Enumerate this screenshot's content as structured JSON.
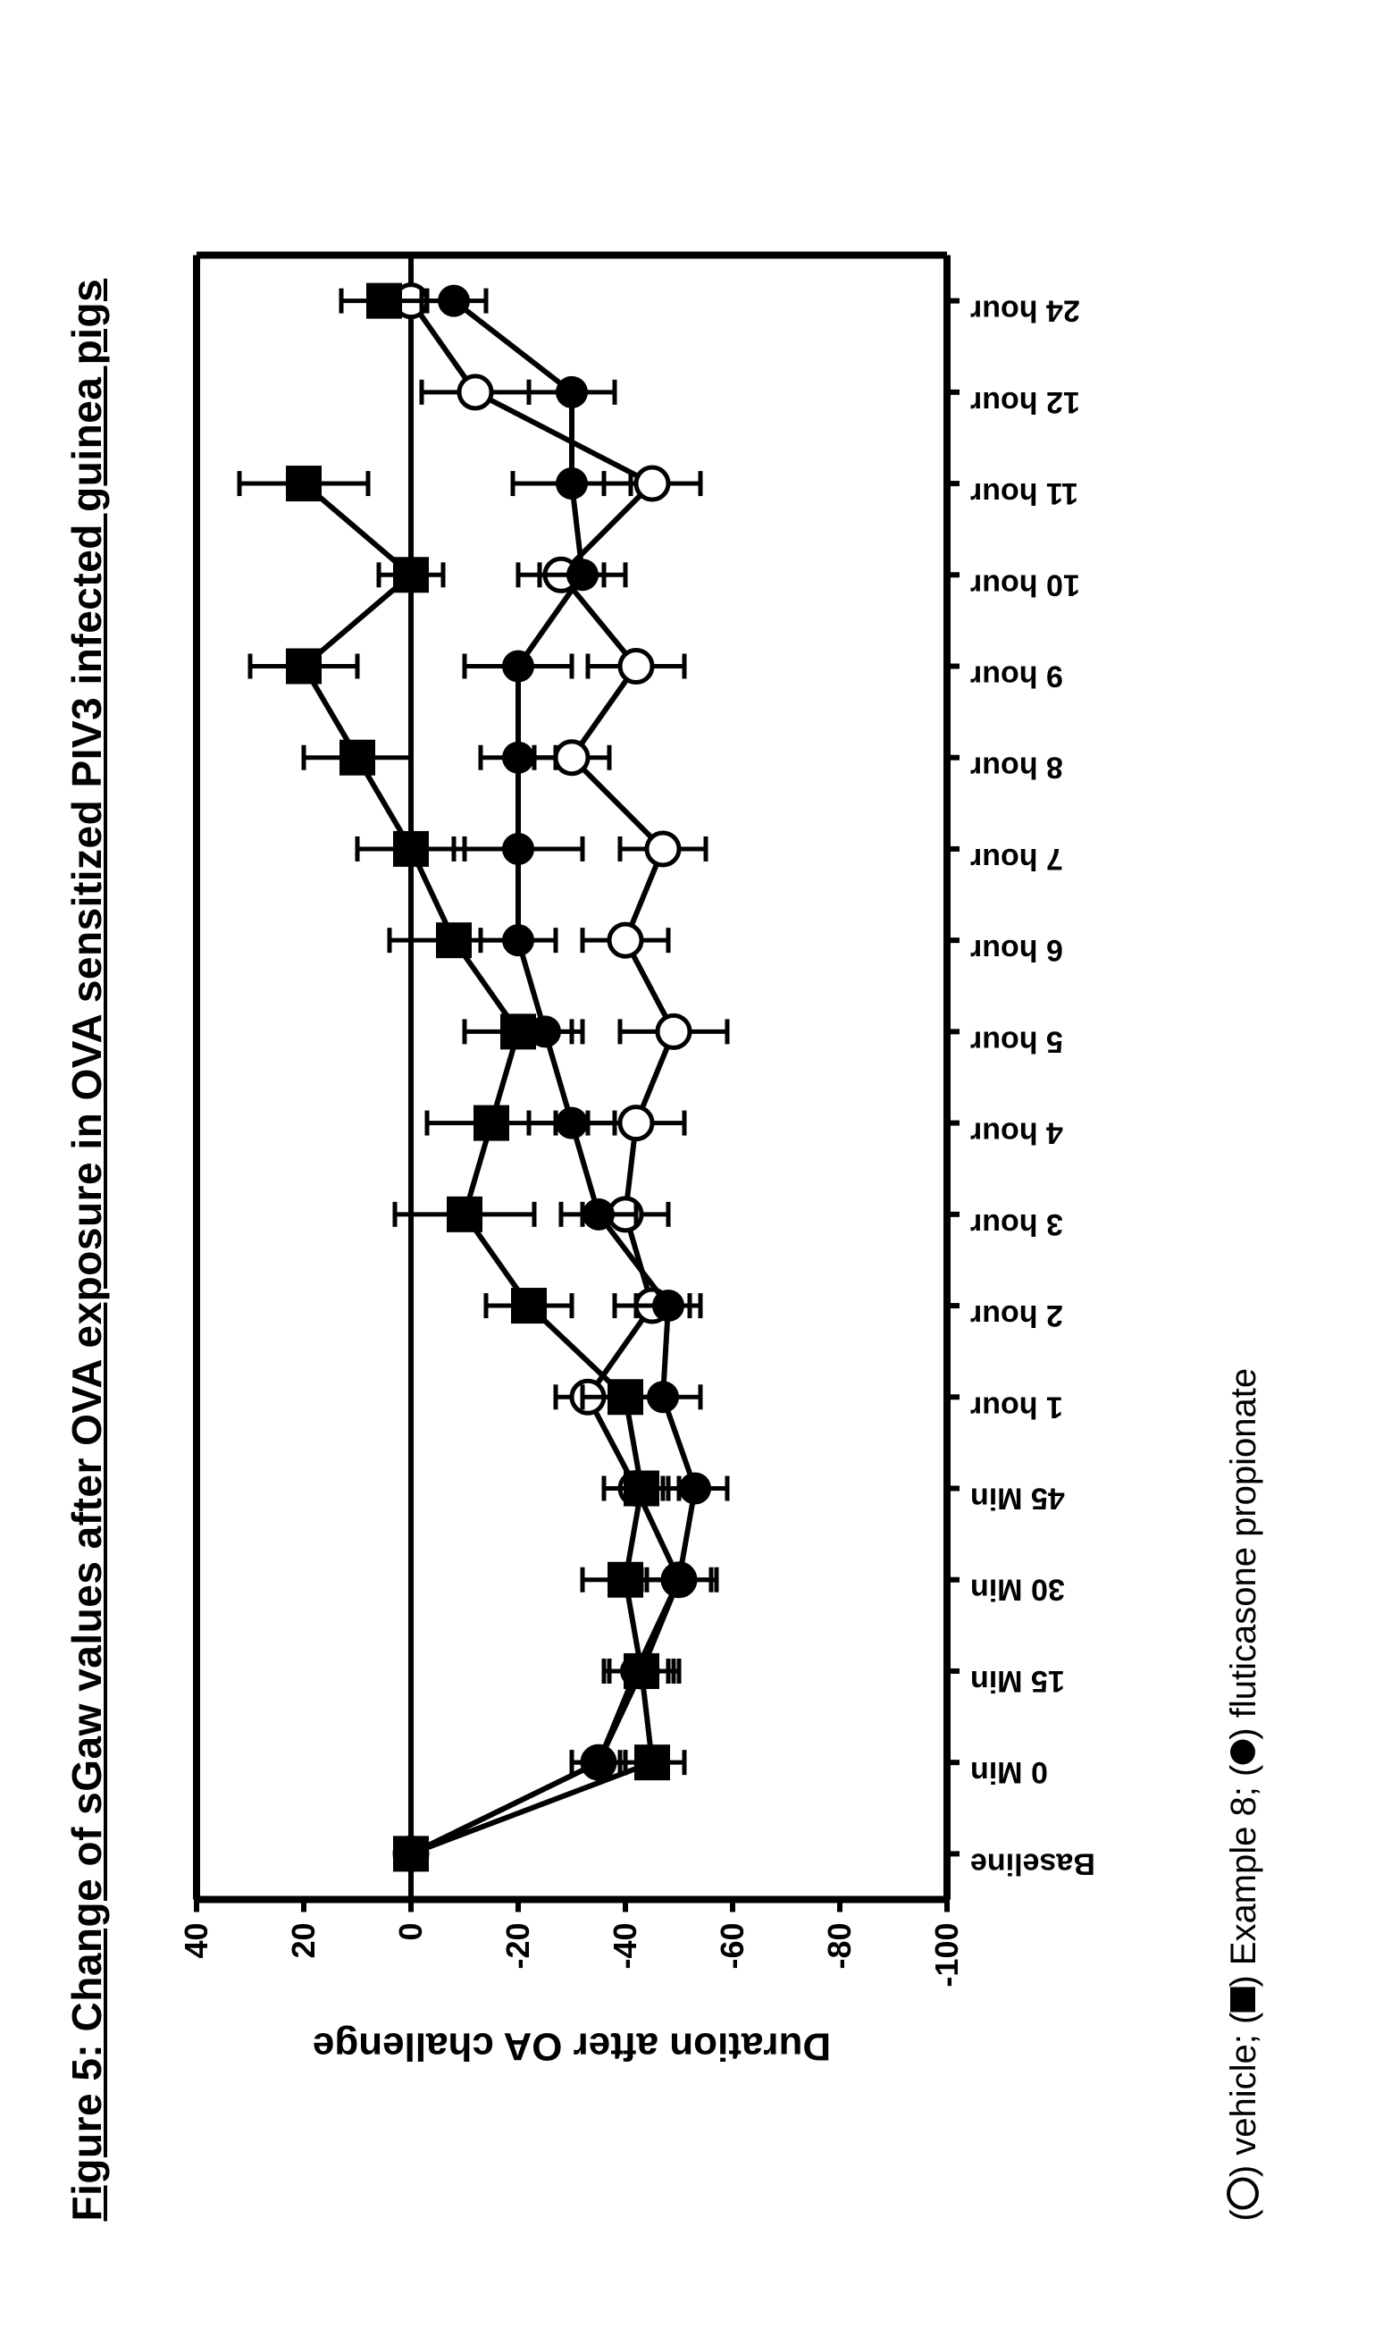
{
  "figure": {
    "title": "Figure 5: Change of sGaw values after OVA exposure in OVA sensitized PIV3 infected guinea pigs",
    "legend": {
      "vehicle": "vehicle",
      "example8": "Example 8",
      "fluticasone": "fluticasone propionate"
    },
    "chart": {
      "type": "line-with-errorbars",
      "background_color": "#ffffff",
      "axis_color": "#000000",
      "axis_linewidth": 8,
      "tick_len": 14,
      "ylabel": "Duration after OA challenge",
      "ylabel_fontsize": 44,
      "ylabel_fontweight": "bold",
      "ylim": [
        -100,
        40
      ],
      "ytick_step": 20,
      "yticks": [
        40,
        20,
        0,
        -20,
        -40,
        -60,
        -80,
        -100
      ],
      "ytick_fontsize": 36,
      "ytick_fontweight": "bold",
      "categories": [
        "Baseline",
        "0 Min",
        "15 Min",
        "30 Min",
        "45 Min",
        "1 hour",
        "2 hour",
        "3 hour",
        "4 hour",
        "5 hour",
        "6 hour",
        "7 hour",
        "8 hour",
        "9 hour",
        "10 hour",
        "11 hour",
        "12 hour",
        "24 hour"
      ],
      "xtick_fontsize": 34,
      "xtick_fontweight": "bold",
      "xtick_rotation": 90,
      "series": [
        {
          "name": "vehicle",
          "marker": "open-circle",
          "marker_size": 18,
          "line_color": "#000000",
          "line_width": 6,
          "fill": "#ffffff",
          "values": [
            0,
            -35,
            -43,
            -50,
            -42,
            -33,
            -45,
            -40,
            -42,
            -49,
            -40,
            -47,
            -30,
            -42,
            -28,
            -45,
            -12,
            0
          ],
          "errors": [
            0,
            5,
            6,
            7,
            6,
            6,
            7,
            8,
            9,
            10,
            8,
            8,
            7,
            9,
            8,
            9,
            10,
            7
          ]
        },
        {
          "name": "Example 8",
          "marker": "filled-square",
          "marker_size": 20,
          "line_color": "#000000",
          "line_width": 6,
          "fill": "#000000",
          "values": [
            0,
            -45,
            -43,
            -40,
            -43,
            -40,
            -22,
            -10,
            -15,
            -20,
            -8,
            0,
            10,
            20,
            0,
            20,
            null,
            5
          ],
          "errors": [
            0,
            6,
            7,
            8,
            7,
            8,
            8,
            13,
            12,
            10,
            12,
            10,
            10,
            10,
            6,
            12,
            0,
            8
          ]
        },
        {
          "name": "fluticasone propionate",
          "marker": "filled-circle",
          "marker_size": 18,
          "line_color": "#000000",
          "line_width": 6,
          "fill": "#000000",
          "values": [
            0,
            -35,
            -42,
            -50,
            -53,
            -47,
            -48,
            -35,
            -30,
            -25,
            -20,
            -20,
            -20,
            -20,
            -32,
            -30,
            -30,
            -8
          ],
          "errors": [
            0,
            5,
            6,
            6,
            6,
            7,
            6,
            7,
            8,
            7,
            7,
            12,
            7,
            10,
            8,
            11,
            8,
            6
          ]
        }
      ],
      "data_line_width": 6,
      "errorbar_cap": 14,
      "errorbar_width": 5
    }
  }
}
